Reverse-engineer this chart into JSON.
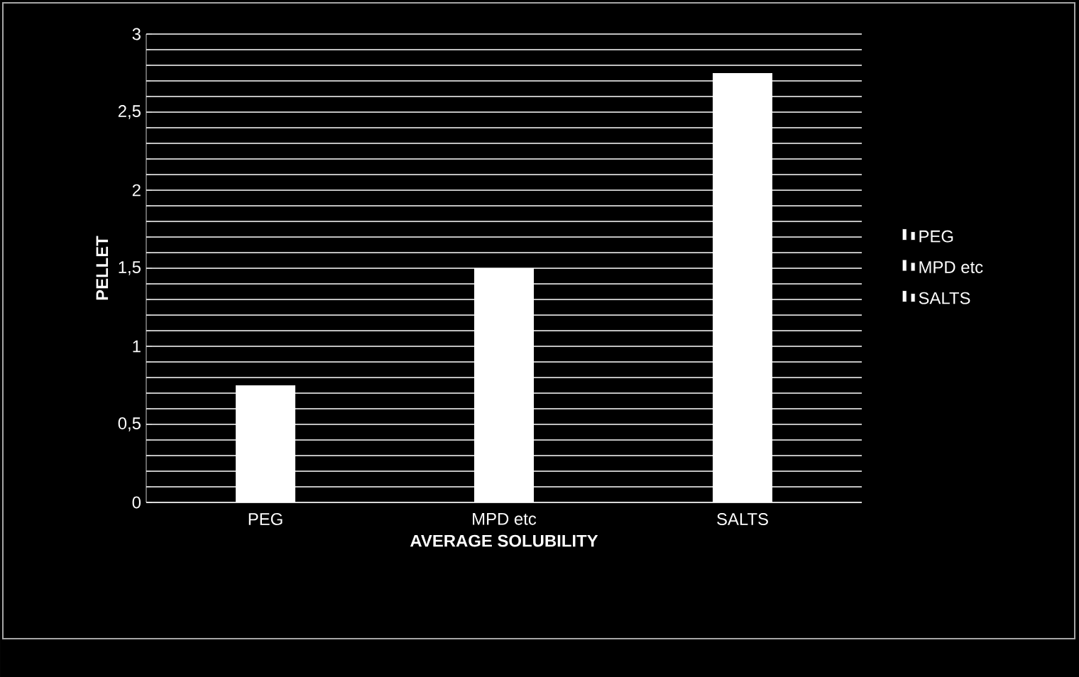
{
  "chart_data": {
    "type": "bar",
    "categories": [
      "PEG",
      "MPD etc",
      "SALTS"
    ],
    "series": [
      {
        "name": "PEG",
        "color": "#ffffff",
        "values": [
          0.75,
          null,
          null
        ]
      },
      {
        "name": "MPD etc",
        "color": "#ffffff",
        "values": [
          null,
          1.5,
          null
        ]
      },
      {
        "name": "SALTS",
        "color": "#ffffff",
        "values": [
          null,
          null,
          2.75
        ]
      }
    ],
    "xlabel": "AVERAGE SOLUBILITY",
    "ylabel": "PELLET",
    "ylim": [
      0,
      3
    ],
    "yticks": [
      0,
      {
        "value": 0.5,
        "label": "0,5"
      },
      1,
      {
        "value": 1.5,
        "label": "1,5"
      },
      2,
      {
        "value": 2.5,
        "label": "2,5"
      },
      3
    ],
    "grid": "y",
    "legend": "right"
  }
}
